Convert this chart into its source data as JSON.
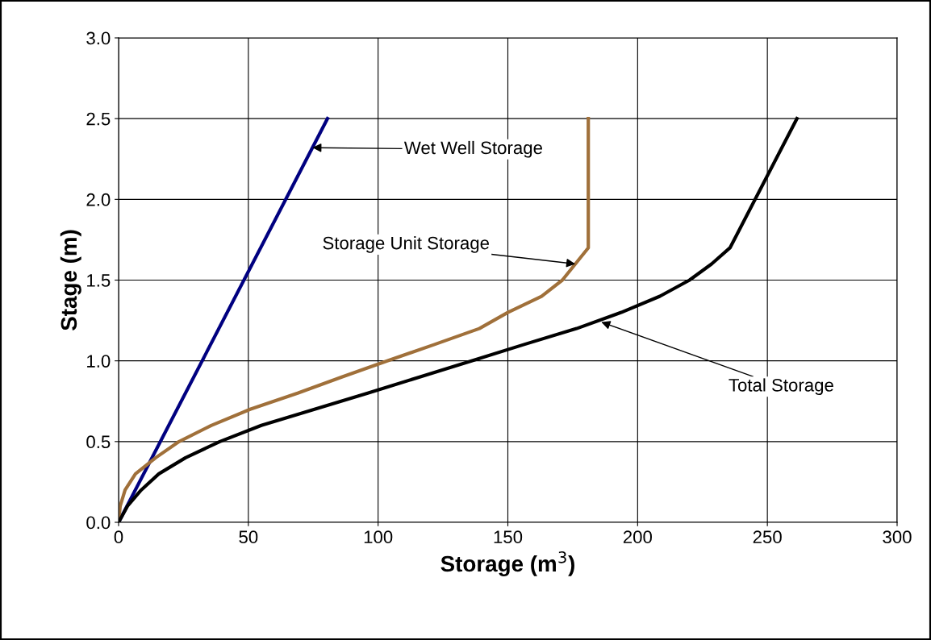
{
  "chart_data": {
    "type": "line",
    "xlabel": "Storage (m$^{3}$)",
    "ylabel": "Stage (m)",
    "xlim": [
      0,
      300
    ],
    "xticks": [
      0,
      50,
      100,
      150,
      200,
      250,
      300
    ],
    "ylim": [
      0,
      3
    ],
    "yticks": [
      {
        "value": 0,
        "label": "0.0"
      },
      {
        "value": 0.5,
        "label": "0.5"
      },
      {
        "value": 1,
        "label": "1.0"
      },
      {
        "value": 1.5,
        "label": "1.5"
      },
      {
        "value": 2,
        "label": "2.0"
      },
      {
        "value": 2.5,
        "label": "2.5"
      },
      {
        "value": 3,
        "label": "3.0"
      }
    ],
    "grid": true,
    "legend": false,
    "marker": "none",
    "line_style": "solid",
    "series": [
      {
        "color": "#000080",
        "x": [
          0,
          80.5
        ],
        "values": [
          0,
          2.5
        ]
      },
      {
        "color": "#a0703a",
        "x": [
          0,
          0.6,
          2.5,
          6.5,
          14.3,
          23.3,
          35.7,
          50.7,
          69,
          86,
          103.5,
          121.5,
          139,
          150,
          163,
          171,
          176,
          181,
          181
        ],
        "values": [
          0,
          0.1,
          0.2,
          0.3,
          0.4,
          0.5,
          0.6,
          0.7,
          0.8,
          0.9,
          1.0,
          1.1,
          1.2,
          1.3,
          1.4,
          1.5,
          1.6,
          1.7,
          2.5
        ]
      },
      {
        "color": "#000000",
        "x": [
          0,
          3.4,
          8.7,
          15.5,
          25.8,
          39,
          55,
          75.5,
          96,
          116,
          136,
          156,
          176.5,
          193.7,
          208.6,
          220,
          228.5,
          235.6,
          261.4
        ],
        "values": [
          0,
          0.1,
          0.2,
          0.3,
          0.4,
          0.5,
          0.6,
          0.7,
          0.8,
          0.9,
          1.0,
          1.1,
          1.2,
          1.3,
          1.4,
          1.5,
          1.6,
          1.7,
          2.5
        ]
      }
    ],
    "annotations": [
      "Wet Well Storage",
      {
        "text": "Storage Unit Storage",
        "x": 176,
        "y": 1.6
      },
      {
        "text": "Total Storage",
        "x": 186,
        "y": 1.24
      }
    ]
  }
}
